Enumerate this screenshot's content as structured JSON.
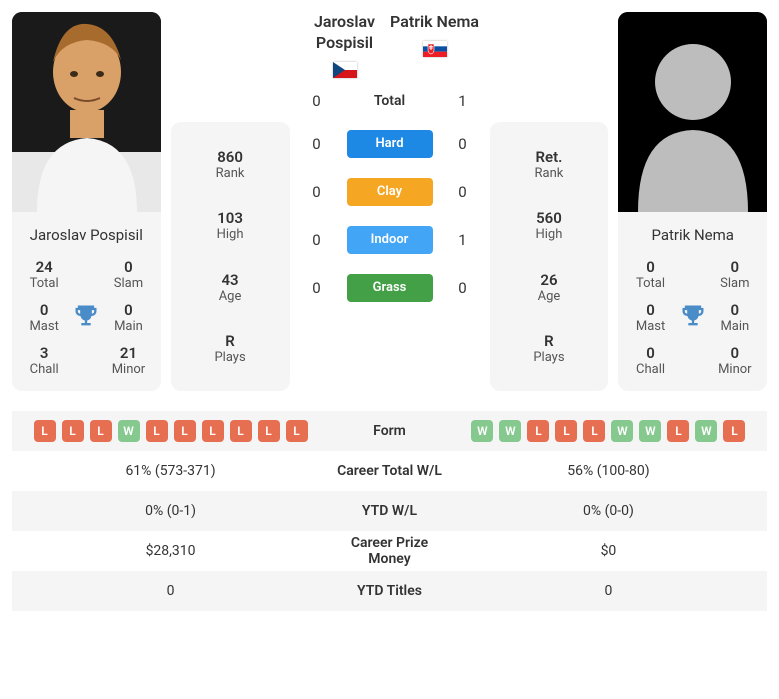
{
  "colors": {
    "loss_badge_bg": "#e76f51",
    "win_badge_bg": "#86c98e",
    "trophy_icon": "#4a8cc7",
    "hard_bg": "#1e88e5",
    "clay_bg": "#f5a623",
    "indoor_bg": "#42a5f5",
    "grass_bg": "#43a047",
    "card_bg": "#f5f5f5",
    "hard_text": "#ffffff",
    "clay_text": "#ffffff",
    "indoor_text": "#ffffff",
    "grass_text": "#ffffff"
  },
  "player1": {
    "name": "Jaroslav Pospisil",
    "name_lines": [
      "Jaroslav",
      "Pospisil"
    ],
    "flag": "cz",
    "rank": "860",
    "high": "103",
    "age": "43",
    "plays": "R",
    "titles": {
      "total": "24",
      "slam": "0",
      "mast": "0",
      "main": "0",
      "chall": "3",
      "minor": "21"
    }
  },
  "player2": {
    "name": "Patrik Nema",
    "name_lines": [
      "Patrik Nema"
    ],
    "flag": "sk",
    "rank": "Ret.",
    "high": "560",
    "age": "26",
    "plays": "R",
    "titles": {
      "total": "0",
      "slam": "0",
      "mast": "0",
      "main": "0",
      "chall": "0",
      "minor": "0"
    }
  },
  "labels": {
    "rank": "Rank",
    "high": "High",
    "age": "Age",
    "plays": "Plays",
    "total": "Total",
    "slam": "Slam",
    "mast": "Mast",
    "main": "Main",
    "chall": "Chall",
    "minor": "Minor"
  },
  "h2h": {
    "total_label": "Total",
    "rows": [
      {
        "p1": "0",
        "p2": "1",
        "label": "Total",
        "is_total": true
      },
      {
        "p1": "0",
        "p2": "0",
        "label": "Hard",
        "bg_key": "hard_bg",
        "fg_key": "hard_text"
      },
      {
        "p1": "0",
        "p2": "0",
        "label": "Clay",
        "bg_key": "clay_bg",
        "fg_key": "clay_text"
      },
      {
        "p1": "0",
        "p2": "1",
        "label": "Indoor",
        "bg_key": "indoor_bg",
        "fg_key": "indoor_text"
      },
      {
        "p1": "0",
        "p2": "0",
        "label": "Grass",
        "bg_key": "grass_bg",
        "fg_key": "grass_text"
      }
    ]
  },
  "form": {
    "label": "Form",
    "p1": [
      "L",
      "L",
      "L",
      "W",
      "L",
      "L",
      "L",
      "L",
      "L",
      "L"
    ],
    "p2": [
      "W",
      "W",
      "L",
      "L",
      "L",
      "W",
      "W",
      "L",
      "W",
      "L"
    ]
  },
  "bottom_rows": [
    {
      "p1": "61% (573-371)",
      "label": "Career Total W/L",
      "p2": "56% (100-80)"
    },
    {
      "p1": "0% (0-1)",
      "label": "YTD W/L",
      "p2": "0% (0-0)"
    },
    {
      "p1": "$28,310",
      "label": "Career Prize Money",
      "p2": "$0"
    },
    {
      "p1": "0",
      "label": "YTD Titles",
      "p2": "0"
    }
  ]
}
